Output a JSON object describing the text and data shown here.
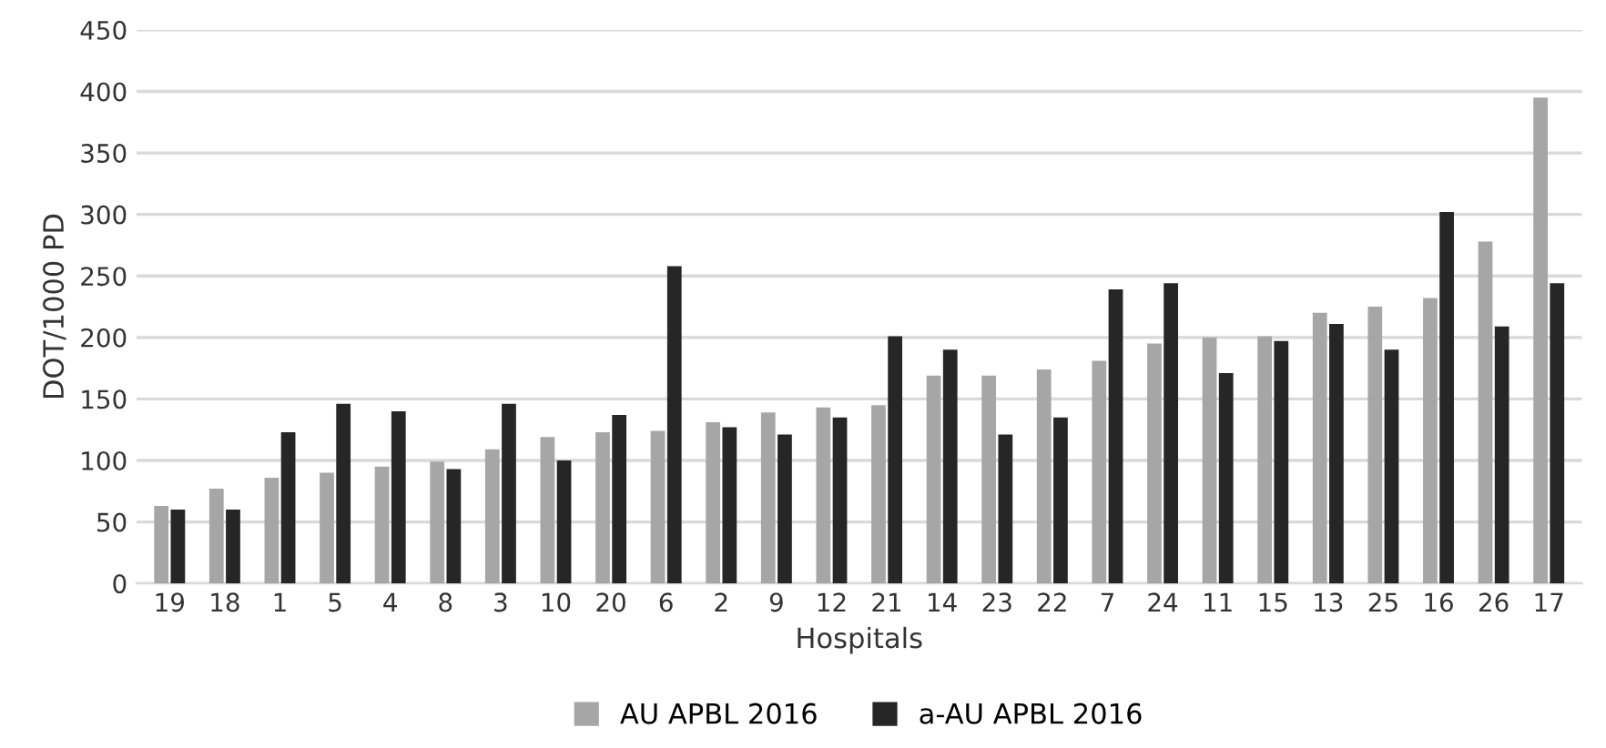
{
  "chart_data": {
    "type": "bar",
    "xlabel": "Hospitals",
    "ylabel": "DOT/1000 PD",
    "categories": [
      "19",
      "18",
      "1",
      "5",
      "4",
      "8",
      "3",
      "10",
      "20",
      "6",
      "2",
      "9",
      "12",
      "21",
      "14",
      "23",
      "22",
      "7",
      "24",
      "11",
      "15",
      "13",
      "25",
      "16",
      "26",
      "17"
    ],
    "series": [
      {
        "name": "AU APBL 2016",
        "color": "#a6a6a6",
        "values": [
          63,
          77,
          86,
          90,
          95,
          99,
          109,
          119,
          123,
          124,
          131,
          139,
          143,
          145,
          169,
          169,
          174,
          181,
          195,
          200,
          201,
          220,
          225,
          232,
          278,
          395
        ]
      },
      {
        "name": "a-AU APBL 2016",
        "color": "#262626",
        "values": [
          60,
          60,
          123,
          146,
          140,
          93,
          146,
          100,
          137,
          258,
          127,
          121,
          135,
          201,
          190,
          121,
          135,
          239,
          244,
          171,
          197,
          211,
          190,
          302,
          209,
          244
        ]
      }
    ],
    "ylim": [
      0,
      450
    ],
    "yticks": [
      0,
      50,
      100,
      150,
      200,
      250,
      300,
      350,
      400,
      450
    ],
    "grid": "y",
    "legend": "bottom"
  }
}
